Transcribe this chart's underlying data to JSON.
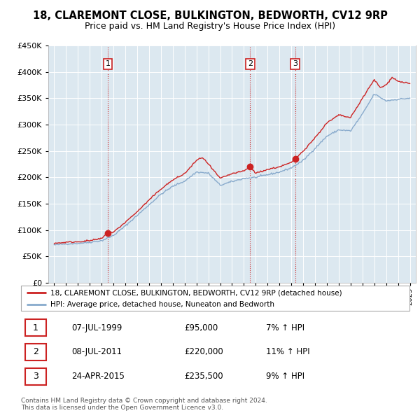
{
  "title": "18, CLAREMONT CLOSE, BULKINGTON, BEDWORTH, CV12 9RP",
  "subtitle": "Price paid vs. HM Land Registry's House Price Index (HPI)",
  "legend_line1": "18, CLAREMONT CLOSE, BULKINGTON, BEDWORTH, CV12 9RP (detached house)",
  "legend_line2": "HPI: Average price, detached house, Nuneaton and Bedworth",
  "footer1": "Contains HM Land Registry data © Crown copyright and database right 2024.",
  "footer2": "This data is licensed under the Open Government Licence v3.0.",
  "sales": [
    {
      "num": 1,
      "date": "07-JUL-1999",
      "price": 95000,
      "hpi_pct": "7%",
      "year": 1999.52
    },
    {
      "num": 2,
      "date": "08-JUL-2011",
      "price": 220000,
      "hpi_pct": "11%",
      "year": 2011.52
    },
    {
      "num": 3,
      "date": "24-APR-2015",
      "price": 235500,
      "hpi_pct": "9%",
      "year": 2015.32
    }
  ],
  "ylim": [
    0,
    450000
  ],
  "yticks": [
    0,
    50000,
    100000,
    150000,
    200000,
    250000,
    300000,
    350000,
    400000,
    450000
  ],
  "xlim_start": 1994.5,
  "xlim_end": 2025.5,
  "red_color": "#cc2222",
  "blue_color": "#88aacc",
  "chart_bg": "#dce8f0",
  "background_color": "#ffffff",
  "grid_color": "#ffffff",
  "title_fontsize": 10.5,
  "subtitle_fontsize": 9
}
